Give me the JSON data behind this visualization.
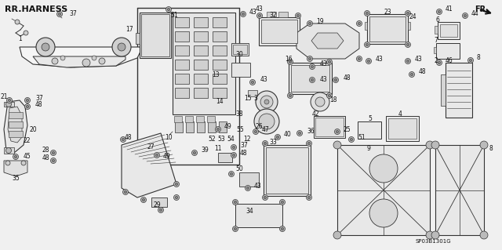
{
  "bg_color": "#f0f0f0",
  "header_text": "RR.HARNESS",
  "corner_text": "FR.",
  "part_code": "SP03B1301G",
  "fig_width": 6.4,
  "fig_height": 3.19,
  "dpi": 100,
  "lc": "#333333",
  "tc": "#111111",
  "fc": "#e8e8e8",
  "header_fontsize": 8,
  "fs": 5.5
}
